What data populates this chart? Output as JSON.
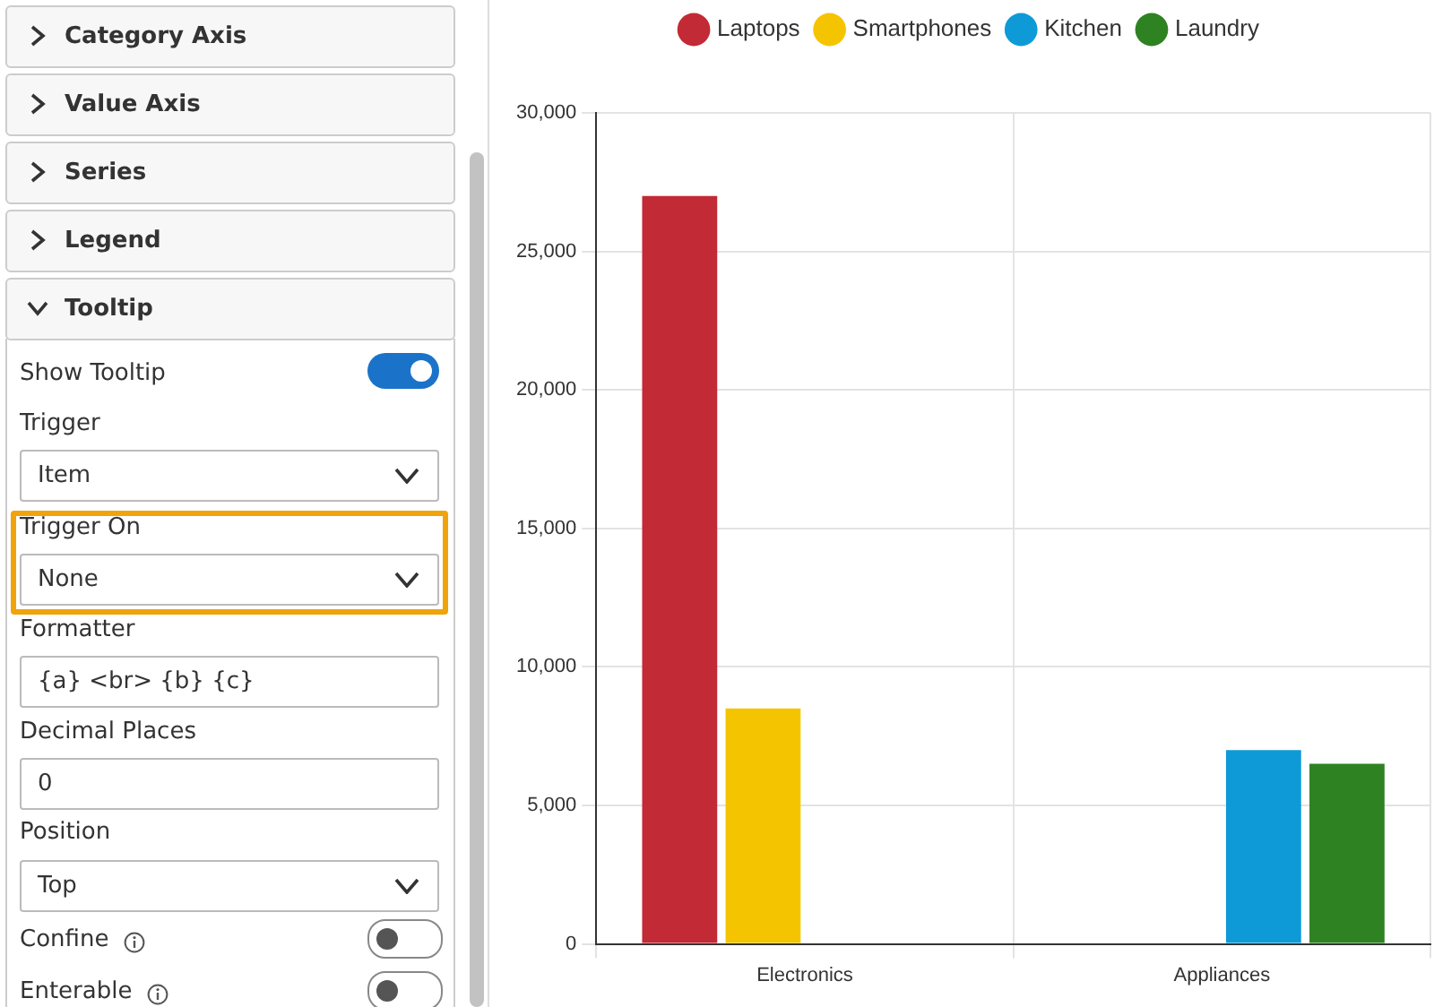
{
  "chart_data": [
    {
      "type": "bar",
      "categories": [
        "Electronics",
        "Appliances"
      ],
      "series": [
        {
          "name": "Laptops",
          "color": "#c22a35",
          "values": [
            27000,
            null
          ]
        },
        {
          "name": "Smartphones",
          "color": "#f5c400",
          "values": [
            8500,
            null
          ]
        },
        {
          "name": "Kitchen",
          "color": "#0e9ad7",
          "values": [
            null,
            7000
          ]
        },
        {
          "name": "Laundry",
          "color": "#2e8222",
          "values": [
            null,
            6500
          ]
        }
      ],
      "ylim": [
        0,
        30000
      ],
      "yticks": [
        {
          "value": 0,
          "label": "0"
        },
        {
          "value": 5000,
          "label": "5,000"
        },
        {
          "value": 10000,
          "label": "10,000"
        },
        {
          "value": 15000,
          "label": "15,000"
        },
        {
          "value": 20000,
          "label": "20,000"
        },
        {
          "value": 25000,
          "label": "25,000"
        },
        {
          "value": 30000,
          "label": "30,000"
        }
      ],
      "grid": true,
      "legend": "top"
    },
    {
      "type": "other",
      "annotations": [
        "Category Axis",
        "Value Axis",
        "Series",
        "Legend",
        "Tooltip",
        "Show Tooltip",
        "Trigger",
        "Item",
        "Trigger On",
        "None",
        "Formatter",
        "{a} <br> {b} {c}",
        "Decimal Places",
        "0",
        "Position",
        "Top",
        "Confine",
        "Enterable"
      ]
    }
  ]
}
